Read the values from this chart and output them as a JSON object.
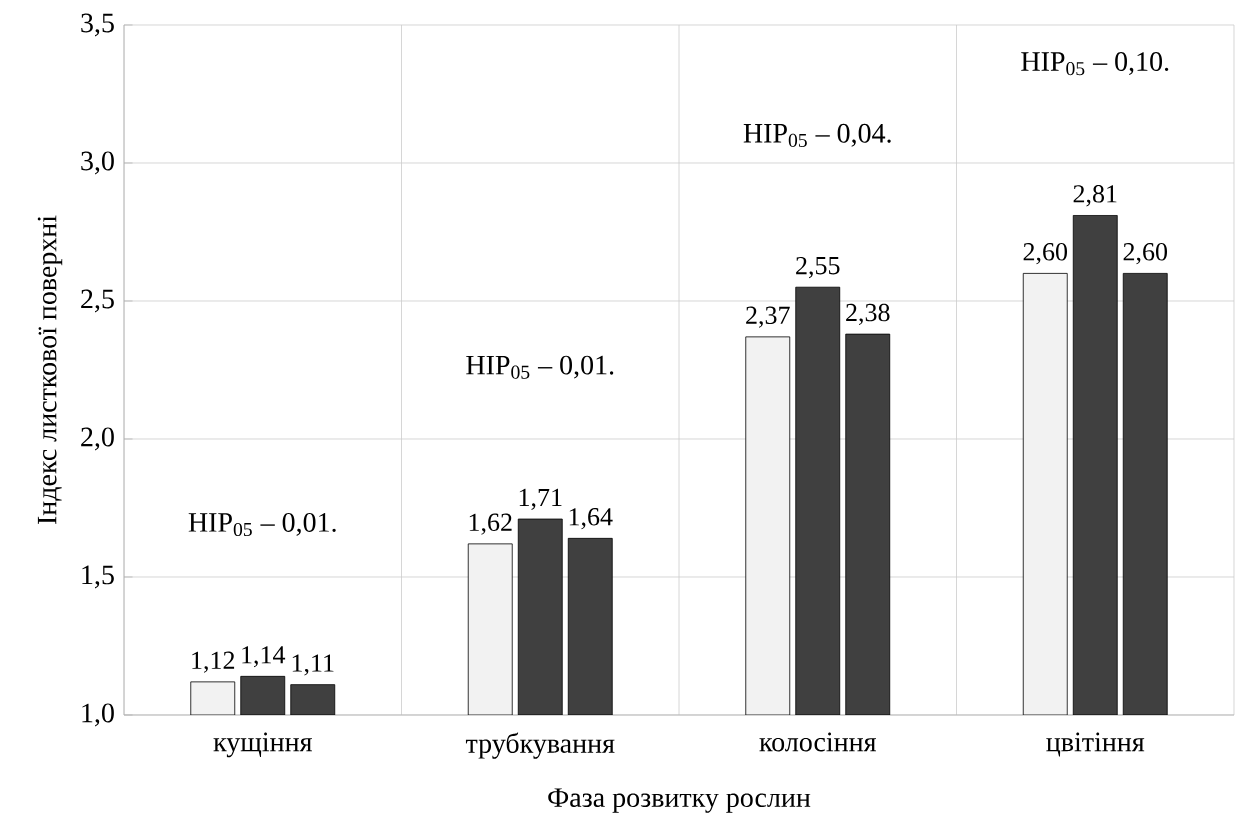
{
  "chart_data": {
    "type": "bar",
    "xlabel": "Фаза розвитку рослин",
    "ylabel": "Індекс листкової поверхні",
    "categories": [
      "кущіння",
      "трубкування",
      "колосіння",
      "цвітіння"
    ],
    "series": [
      {
        "color": "#f2f2f2",
        "values": [
          1.12,
          1.62,
          2.37,
          2.6
        ],
        "value_labels": [
          "1,12",
          "1,62",
          "2,37",
          "2,60"
        ]
      },
      {
        "color": "#404040",
        "values": [
          1.14,
          1.71,
          2.55,
          2.81
        ],
        "value_labels": [
          "1,14",
          "1,71",
          "2,55",
          "2,81"
        ]
      },
      {
        "color": "#404040",
        "values": [
          1.11,
          1.64,
          2.38,
          2.6
        ],
        "value_labels": [
          "1,11",
          "1,64",
          "2,38",
          "2,60"
        ]
      }
    ],
    "ylim": [
      1.0,
      3.5
    ],
    "yticks": [
      {
        "value": 1.0,
        "label": "1,0"
      },
      {
        "value": 1.5,
        "label": "1,5"
      },
      {
        "value": 2.0,
        "label": "2,0"
      },
      {
        "value": 2.5,
        "label": "2,5"
      },
      {
        "value": 3.0,
        "label": "3,0"
      },
      {
        "value": 3.5,
        "label": "3,5"
      }
    ],
    "grid": true,
    "annotations": [
      "HIP$_{05}$ – 0,01.",
      "HIP$_{05}$ – 0,01.",
      "HIP$_{05}$ – 0,04.",
      "HIP$_{05}$ – 0,10."
    ]
  }
}
